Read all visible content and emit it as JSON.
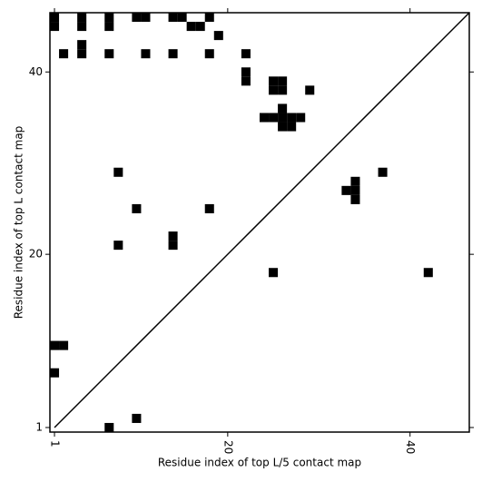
{
  "chart_data": {
    "type": "contact-map",
    "x_label": "Residue index of top L/5 contact map",
    "y_label": "Residue index of top L contact map",
    "color": "#000000",
    "diagonal": true,
    "xlim": [
      0.5,
      46.5
    ],
    "ylim": [
      0.5,
      46.5
    ],
    "xticks": [
      1,
      20,
      40
    ],
    "yticks": [
      1,
      20,
      40
    ],
    "x": [
      1,
      1,
      4,
      4,
      7,
      7,
      10,
      11,
      14,
      15,
      16,
      17,
      18,
      19,
      4,
      4,
      2,
      7,
      11,
      14,
      18,
      22,
      22,
      22,
      25,
      26,
      25,
      26,
      29,
      26,
      24,
      25,
      26,
      27,
      28,
      26,
      27,
      8,
      37,
      34,
      33,
      34,
      34,
      10,
      18,
      14,
      14,
      8,
      25,
      42,
      1,
      2,
      1,
      10,
      7
    ],
    "y": [
      46,
      45,
      46,
      45,
      46,
      45,
      46,
      46,
      46,
      46,
      45,
      45,
      46,
      44,
      43,
      42,
      42,
      42,
      42,
      42,
      42,
      42,
      40,
      39,
      39,
      39,
      38,
      38,
      38,
      36,
      35,
      35,
      35,
      35,
      35,
      34,
      34,
      29,
      29,
      28,
      27,
      27,
      26,
      25,
      25,
      22,
      21,
      21,
      18,
      18,
      10,
      10,
      7,
      2,
      1
    ]
  }
}
